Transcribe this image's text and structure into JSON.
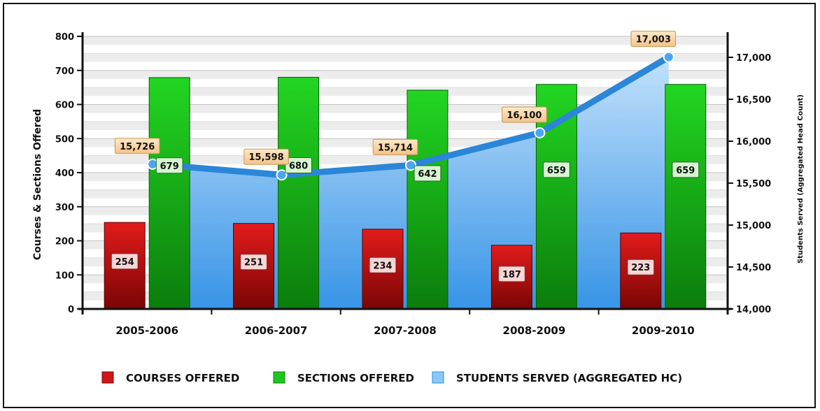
{
  "chart_data": {
    "type": "bar",
    "categories": [
      "2005-2006",
      "2006-2007",
      "2007-2008",
      "2008-2009",
      "2009-2010"
    ],
    "series": [
      {
        "name": "COURSES OFFERED",
        "type": "bar",
        "axis": "left",
        "color": "#cc1111",
        "values": [
          254,
          251,
          234,
          187,
          223
        ]
      },
      {
        "name": "SECTIONS OFFERED",
        "type": "bar",
        "axis": "left",
        "color": "#11aa11",
        "values": [
          679,
          680,
          642,
          659,
          659
        ]
      },
      {
        "name": "STUDENTS SERVED (AGGREGATED HC)",
        "type": "area",
        "axis": "right",
        "color": "#3399ee",
        "values": [
          15726,
          15598,
          15714,
          16100,
          17003
        ]
      }
    ],
    "data_labels": {
      "courses": [
        "254",
        "251",
        "234",
        "187",
        "223"
      ],
      "sections": [
        "679",
        "680",
        "642",
        "659",
        "659"
      ],
      "students": [
        "15,726",
        "15,598",
        "15,714",
        "16,100",
        "17,003"
      ]
    },
    "ylabel": "Courses & Sections Offered",
    "ylabel_right": "Students Served (Aggregated Head Count)",
    "ylim": [
      0,
      800
    ],
    "ylim_right": [
      14000,
      17250
    ],
    "yticks": [
      "0",
      "100",
      "200",
      "300",
      "400",
      "500",
      "600",
      "700",
      "800"
    ],
    "yticks_right": [
      "14,000",
      "14,500",
      "15,000",
      "15,500",
      "16,000",
      "16,500",
      "17,000"
    ],
    "grid": true,
    "legend_position": "bottom"
  }
}
